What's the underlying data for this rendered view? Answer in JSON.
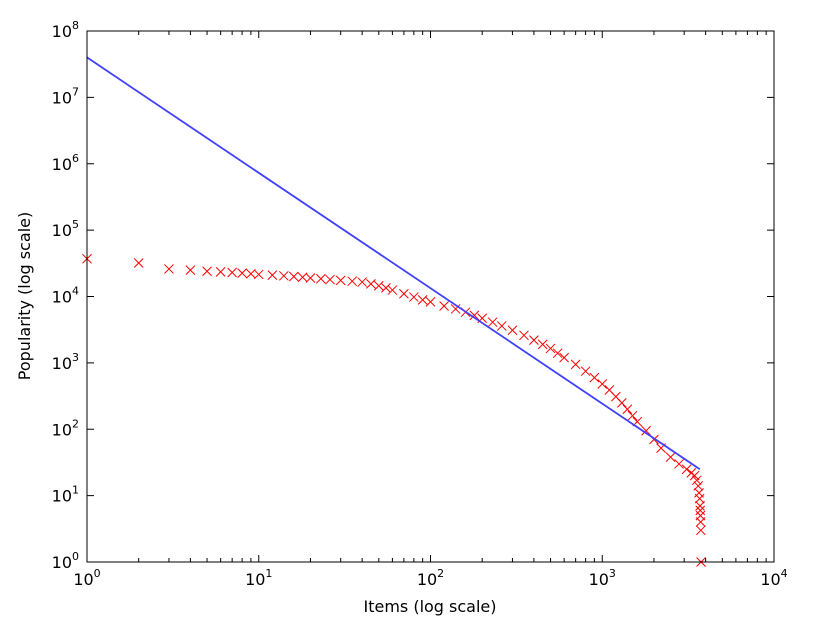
{
  "chart_data": {
    "type": "scatter",
    "title": "",
    "xlabel": "Items (log scale)",
    "ylabel": "Popularity (log scale)",
    "xscale": "log",
    "yscale": "log",
    "xlim": [
      1,
      10000
    ],
    "ylim": [
      1,
      100000000
    ],
    "grid": false,
    "x_ticks": [
      {
        "base": "10",
        "exp": "0"
      },
      {
        "base": "10",
        "exp": "1"
      },
      {
        "base": "10",
        "exp": "2"
      },
      {
        "base": "10",
        "exp": "3"
      },
      {
        "base": "10",
        "exp": "4"
      }
    ],
    "y_ticks": [
      {
        "base": "10",
        "exp": "0"
      },
      {
        "base": "10",
        "exp": "1"
      },
      {
        "base": "10",
        "exp": "2"
      },
      {
        "base": "10",
        "exp": "3"
      },
      {
        "base": "10",
        "exp": "4"
      },
      {
        "base": "10",
        "exp": "5"
      },
      {
        "base": "10",
        "exp": "6"
      },
      {
        "base": "10",
        "exp": "7"
      },
      {
        "base": "10",
        "exp": "8"
      }
    ],
    "series": [
      {
        "kind": "scatter",
        "marker": "x",
        "color": "#ff0000",
        "points": [
          [
            1,
            37000
          ],
          [
            2,
            32000
          ],
          [
            3,
            26000
          ],
          [
            4,
            25000
          ],
          [
            5,
            24000
          ],
          [
            6,
            23500
          ],
          [
            7,
            23000
          ],
          [
            8,
            22500
          ],
          [
            9,
            22000
          ],
          [
            10,
            21500
          ],
          [
            12,
            21000
          ],
          [
            14,
            20500
          ],
          [
            16,
            20000
          ],
          [
            18,
            19500
          ],
          [
            20,
            19000
          ],
          [
            23,
            18500
          ],
          [
            26,
            18000
          ],
          [
            30,
            17500
          ],
          [
            35,
            17000
          ],
          [
            40,
            16500
          ],
          [
            45,
            15500
          ],
          [
            50,
            14500
          ],
          [
            55,
            13500
          ],
          [
            60,
            12500
          ],
          [
            70,
            11000
          ],
          [
            80,
            9800
          ],
          [
            90,
            8900
          ],
          [
            100,
            8300
          ],
          [
            120,
            7200
          ],
          [
            140,
            6500
          ],
          [
            160,
            5800
          ],
          [
            180,
            5200
          ],
          [
            200,
            4700
          ],
          [
            230,
            4100
          ],
          [
            260,
            3600
          ],
          [
            300,
            3100
          ],
          [
            350,
            2600
          ],
          [
            400,
            2200
          ],
          [
            450,
            1900
          ],
          [
            500,
            1650
          ],
          [
            550,
            1400
          ],
          [
            600,
            1200
          ],
          [
            700,
            950
          ],
          [
            800,
            750
          ],
          [
            900,
            600
          ],
          [
            1000,
            480
          ],
          [
            1100,
            390
          ],
          [
            1200,
            310
          ],
          [
            1300,
            250
          ],
          [
            1400,
            200
          ],
          [
            1500,
            160
          ],
          [
            1600,
            130
          ],
          [
            1800,
            95
          ],
          [
            2000,
            70
          ],
          [
            2200,
            52
          ],
          [
            2500,
            38
          ],
          [
            2800,
            30
          ],
          [
            3100,
            25
          ],
          [
            3300,
            22
          ],
          [
            3450,
            20
          ],
          [
            3550,
            17
          ],
          [
            3620,
            14
          ],
          [
            3660,
            11
          ],
          [
            3690,
            9
          ],
          [
            3710,
            7
          ],
          [
            3720,
            6
          ],
          [
            3730,
            5
          ],
          [
            3740,
            4
          ],
          [
            3750,
            3
          ],
          [
            3760,
            1
          ]
        ]
      },
      {
        "kind": "line",
        "color": "#4040ff",
        "points": [
          [
            1,
            40000000
          ],
          [
            3700,
            25
          ]
        ]
      }
    ]
  }
}
